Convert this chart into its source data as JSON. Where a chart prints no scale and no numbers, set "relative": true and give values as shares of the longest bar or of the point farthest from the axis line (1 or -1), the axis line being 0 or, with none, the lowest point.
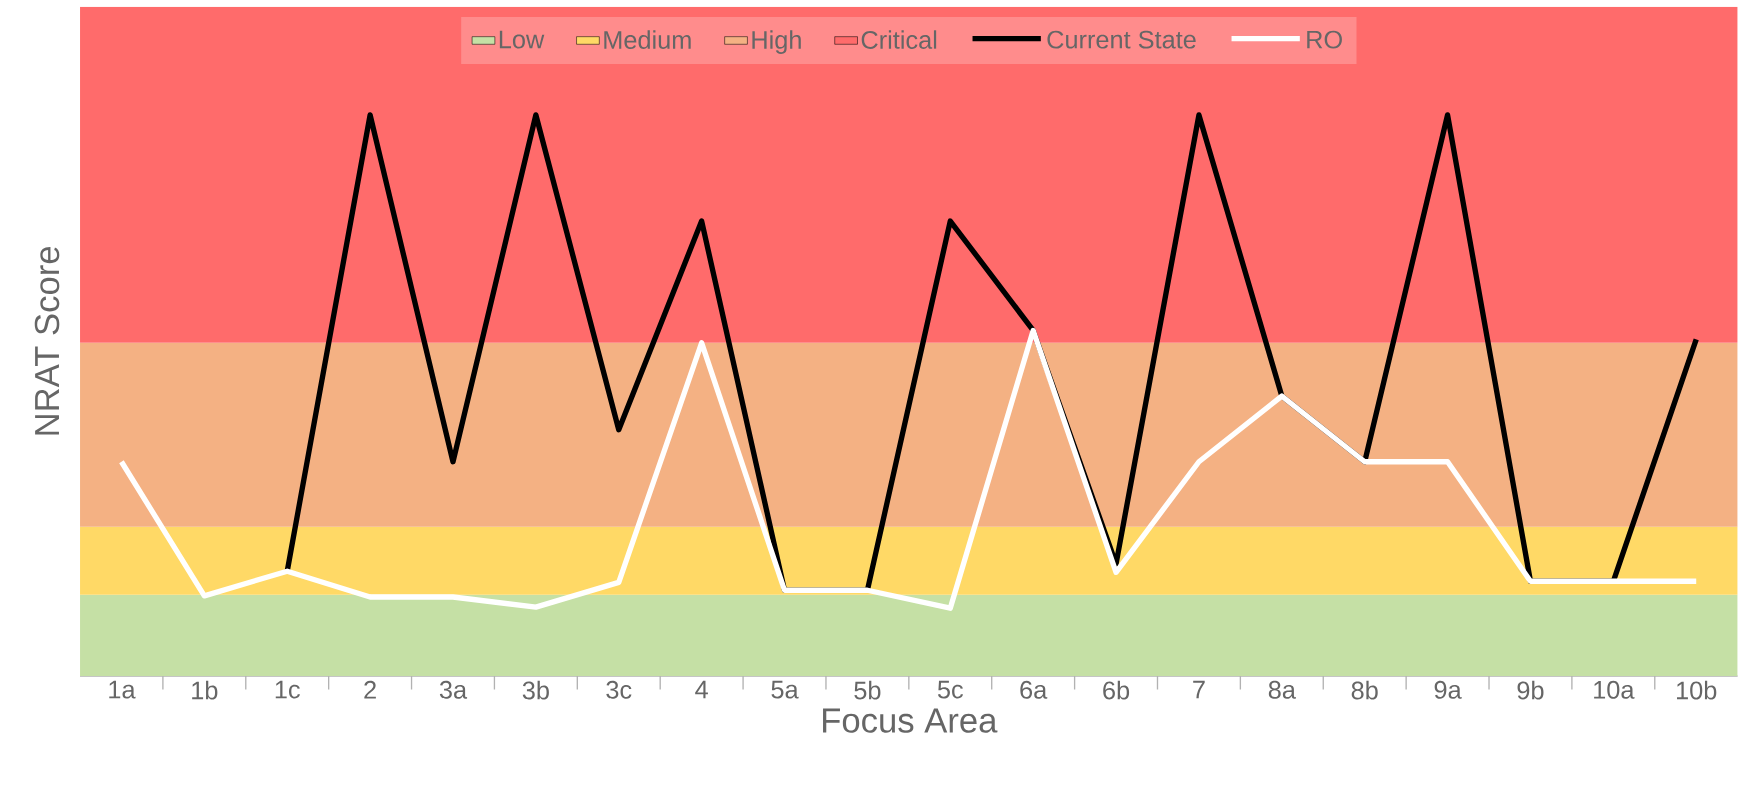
{
  "chart_data": {
    "type": "line",
    "relative": true,
    "xlabel": "Focus Area",
    "ylabel": "NRAT Score",
    "legend": "top",
    "categories": [
      "1a",
      "1b",
      "1c",
      "2",
      "3a",
      "3b",
      "3c",
      "4",
      "5a",
      "5b",
      "5c",
      "6a",
      "6b",
      "7",
      "8a",
      "8b",
      "9a",
      "9b",
      "10a",
      "10b"
    ],
    "bands": [
      {
        "axis": "y",
        "from": 0,
        "to": 0.145,
        "label": "Low",
        "color": "#c5e0a5"
      },
      {
        "axis": "y",
        "from": 0.145,
        "to": 0.266,
        "label": "Medium",
        "color": "#ffd966"
      },
      {
        "axis": "y",
        "from": 0.266,
        "to": 0.594,
        "label": "High",
        "color": "#f4b183"
      },
      {
        "axis": "y",
        "from": 0.594,
        "to": 1.193,
        "label": "Critical",
        "color": "#ff6b6b"
      }
    ],
    "series": [
      {
        "name": "Current State",
        "color": "#000000",
        "values": [
          null,
          null,
          0.187,
          1.0,
          0.382,
          1.0,
          0.439,
          0.811,
          0.153,
          0.153,
          0.811,
          0.616,
          0.2,
          1.0,
          0.499,
          0.382,
          1.0,
          0.169,
          0.169,
          0.6
        ]
      },
      {
        "name": "RO",
        "color": "#ffffff",
        "values": [
          0.382,
          0.143,
          0.187,
          0.141,
          0.141,
          0.123,
          0.167,
          0.594,
          0.153,
          0.153,
          0.121,
          0.616,
          0.185,
          0.382,
          0.499,
          0.382,
          0.382,
          0.169,
          0.169,
          0.169
        ]
      }
    ]
  }
}
